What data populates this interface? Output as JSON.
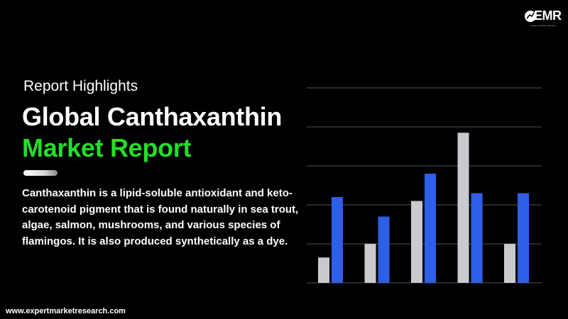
{
  "logo": {
    "text": "EMR",
    "tagline": "Leaders in Market Research",
    "icon": "emr-logo-mark"
  },
  "header": {
    "subtitle": "Report Highlights",
    "title_line1": "Global Canthaxanthin",
    "title_line2": "Market Report"
  },
  "body": {
    "description": "Canthaxanthin is a lipid-soluble antioxidant and keto-carotenoid pigment that is found naturally in sea trout, algae, salmon, mushrooms, and various species of flamingos. It is also produced synthetically as a dye."
  },
  "footer": {
    "url": "www.expertmarketresearch.com"
  },
  "colors": {
    "background": "#000000",
    "accent_green": "#22e02a",
    "bar_grey": "#c8cacd",
    "bar_blue": "#2f5fe8",
    "gridline": "#555555"
  },
  "chart_data": {
    "type": "bar",
    "categories": [
      "",
      "",
      "",
      "",
      ""
    ],
    "series": [
      {
        "values": [
          13,
          20,
          42,
          77,
          20
        ]
      },
      {
        "values": [
          44,
          34,
          56,
          46,
          46
        ]
      }
    ],
    "ylim": [
      0,
      100
    ],
    "grid": true,
    "legend": "none"
  }
}
